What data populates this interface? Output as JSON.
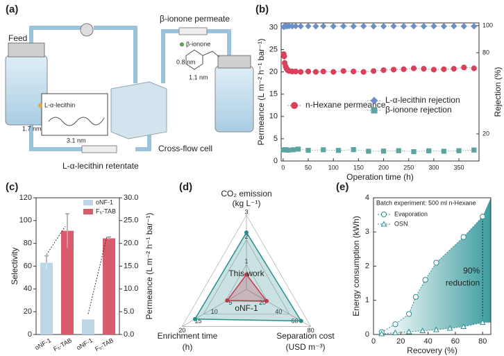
{
  "panel_a": {
    "label": "(a)",
    "feed": "Feed",
    "permeate": "β-ionone permeate",
    "ionone": "β-ionone",
    "ionone_dim1": "0.8 nm",
    "ionone_dim2": "1.1 nm",
    "lecithin": "L-α-lecithin",
    "lecithin_dim1": "1.7 nm",
    "lecithin_dim2": "3.1 nm",
    "cell": "Cross-flow cell",
    "retentate": "L-α-lecithin retentate"
  },
  "chart_data": [
    {
      "type": "scatter",
      "panel": "(b)",
      "xlabel": "Operation time (h)",
      "ylabel": "Permeance (L m⁻² h⁻¹ bar⁻¹)",
      "y2label": "Rejection (%)",
      "xlim": [
        -4,
        390
      ],
      "xticks": [
        0,
        50,
        100,
        150,
        200,
        250,
        300,
        350
      ],
      "ylim": [
        0,
        31
      ],
      "yticks": [
        0,
        5,
        10,
        15,
        20,
        25,
        30
      ],
      "y2lim": [
        0,
        102
      ],
      "y2ticks": [
        20,
        80,
        100
      ],
      "series": [
        {
          "name": "n-Hexane permeance",
          "color": "#d9415a",
          "marker": "circle",
          "axis": "y",
          "x": [
            1,
            2,
            3,
            5,
            7,
            9,
            12,
            18,
            25,
            35,
            50,
            65,
            80,
            100,
            120,
            140,
            160,
            180,
            200,
            220,
            240,
            260,
            280,
            300,
            320,
            340,
            360,
            380
          ],
          "values": [
            24,
            23.5,
            22,
            21.2,
            20.7,
            20.4,
            20.2,
            20.1,
            20.1,
            20,
            20.1,
            20,
            20.1,
            20,
            20.2,
            20.1,
            20,
            20.2,
            20.4,
            20.5,
            20.6,
            20.8,
            20.7,
            20.5,
            20.6,
            20.7,
            21,
            20.8
          ]
        },
        {
          "name": "L-α-lecithin rejection",
          "color": "#6b8fc4",
          "marker": "diamond",
          "axis": "y2",
          "x": [
            1,
            3,
            5,
            8,
            12,
            18,
            25,
            35,
            50,
            65,
            80,
            100,
            120,
            140,
            160,
            180,
            200,
            220,
            240,
            260,
            280,
            300,
            320,
            340,
            360,
            380
          ],
          "values": [
            99,
            99.5,
            99.6,
            99.5,
            99.7,
            99.5,
            99.6,
            99.5,
            99.6,
            99.5,
            99.6,
            99.5,
            99.6,
            99.5,
            99.6,
            99.5,
            99.5,
            99.6,
            99.5,
            99.6,
            99.5,
            99.6,
            99.5,
            99.6,
            99.5,
            99.5
          ]
        },
        {
          "name": "β-ionone rejection",
          "color": "#5fa3a0",
          "marker": "square",
          "axis": "y2",
          "x": [
            0,
            5,
            10,
            20,
            30,
            50,
            80,
            110,
            140,
            170,
            200,
            230,
            260,
            290,
            320,
            350,
            380
          ],
          "values": [
            8.2,
            8.4,
            8,
            8.3,
            8.8,
            7.9,
            8.3,
            7.8,
            8.4,
            7.2,
            7.3,
            7.6,
            6.9,
            7.5,
            7.2,
            7.6,
            8.1
          ]
        }
      ]
    },
    {
      "type": "bar",
      "panel": "(c)",
      "ylabel": "Selectivity",
      "y2label": "Permeance (L m⁻² h⁻¹ bar⁻¹)",
      "ylim": [
        0,
        120
      ],
      "yticks": [
        0,
        20,
        40,
        60,
        80,
        100,
        120
      ],
      "y2lim": [
        0,
        30
      ],
      "y2ticks": [
        {
          "value": 0,
          "label": "0.0"
        },
        {
          "value": 5,
          "label": "5.0"
        },
        {
          "value": 10,
          "label": "10.0"
        },
        {
          "value": 15,
          "label": "15.0"
        },
        {
          "value": 20,
          "label": "20.0"
        },
        {
          "value": 25,
          "label": "25.0"
        },
        {
          "value": 30,
          "label": "30.0"
        }
      ],
      "categories": [
        "oNF-1",
        "F₅-TAB",
        "oNF-1",
        "F₅-TAB"
      ],
      "axes": [
        "y",
        "y",
        "y2",
        "y2"
      ],
      "series": [
        {
          "name": "oNF-1",
          "color": "#bcd6e6",
          "values": [
            63,
            null,
            3.3,
            null
          ],
          "errors": [
            6,
            null,
            null,
            null
          ]
        },
        {
          "name": "F₅-TAB",
          "color": "#d85c6c",
          "values": [
            null,
            91,
            null,
            21.1
          ],
          "errors": [
            null,
            15,
            null,
            0.3
          ]
        }
      ]
    },
    {
      "type": "radar",
      "panel": "(d)",
      "axes": [
        {
          "label": "CO₂ emission",
          "unit": "(kg L⁻¹)",
          "lim": [
            0,
            3
          ],
          "ticks": [
            1,
            2,
            3
          ]
        },
        {
          "label": "Enrichment time",
          "unit": "(h)",
          "lim": [
            0,
            20
          ],
          "ticks": [
            5,
            10,
            15,
            20
          ]
        },
        {
          "label": "Separation cost",
          "unit": "(USD m⁻³)",
          "lim": [
            0,
            80
          ],
          "ticks": [
            20,
            40,
            60,
            80
          ]
        }
      ],
      "series": [
        {
          "name": "oNF-1",
          "color": "#2a8c8c",
          "values": [
            2.3,
            16,
            68
          ]
        },
        {
          "name": "This work",
          "color": "#c0394b",
          "values": [
            0.6,
            6,
            25
          ]
        }
      ]
    },
    {
      "type": "line",
      "panel": "(e)",
      "xlabel": "Recovery (%)",
      "ylabel": "Energy consumption (kWh)",
      "annotation": "Batch experiment: 500 ml n-Hexane",
      "reduction_value": "90%",
      "reduction_text": "reduction",
      "xlim": [
        0,
        86
      ],
      "xticks": [
        0,
        20,
        40,
        60,
        80
      ],
      "ylim": [
        0,
        4
      ],
      "yticks": [
        0,
        1,
        2,
        3,
        4
      ],
      "series": [
        {
          "name": "Evaporation",
          "color": "#2a8c8c",
          "marker": "circle",
          "x": [
            6,
            16,
            26,
            31,
            38,
            46,
            66,
            80
          ],
          "values": [
            0.07,
            0.3,
            0.6,
            1.1,
            1.6,
            2.1,
            2.85,
            3.45
          ]
        },
        {
          "name": "OSN",
          "color": "#2a8c8c",
          "marker": "triangle",
          "x": [
            6,
            16,
            26,
            36,
            46,
            56,
            66,
            80
          ],
          "values": [
            0.02,
            0.05,
            0.08,
            0.11,
            0.14,
            0.18,
            0.23,
            0.35
          ]
        }
      ]
    }
  ]
}
